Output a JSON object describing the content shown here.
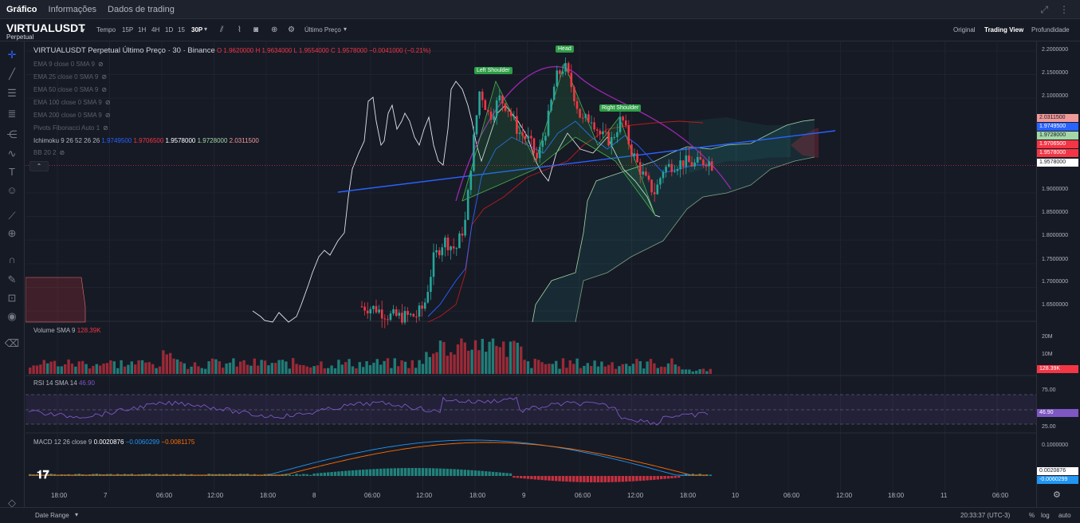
{
  "top_tabs": [
    "Gráfico",
    "Informações",
    "Dados de trading"
  ],
  "symbol": {
    "name": "VIRTUALUSDT",
    "sub": "Perpetual"
  },
  "timeframes": {
    "label": "Tempo",
    "items": [
      "15P",
      "1H",
      "4H",
      "1D",
      "15",
      "30P"
    ],
    "active": "30P"
  },
  "price_type": "Último Preço",
  "views": [
    "Original",
    "Trading View",
    "Profundidade"
  ],
  "legend": {
    "title": "VIRTUALUSDT Perpetual Último Preço · 30 · Binance",
    "o": "O 1.9620000",
    "h": "H 1.9634000",
    "l": "L 1.9554000",
    "c": "C 1.9578000",
    "chg": "−0.0041000 (−0.21%)",
    "indicators": [
      "EMA 9 close 0 SMA 9",
      "EMA 25 close 0 SMA 9",
      "EMA 50 close 0 SMA 9",
      "EMA 100 close 0 SMA 9",
      "EMA 200 close 0 SMA 9",
      "Pivots Fibonacci Auto 1"
    ],
    "ichimoku": {
      "label": "Ichimoku 9 26 52 26 26",
      "v1": "1.9749500",
      "v2": "1.9706500",
      "v3": "1.9578000",
      "v4": "1.9728000",
      "v5": "2.0311500"
    },
    "bb": "BB 20 2"
  },
  "volume": {
    "label": "Volume SMA 9",
    "value": "128.39K"
  },
  "rsi": {
    "label": "RSI 14 SMA 14",
    "value": "46.90"
  },
  "macd": {
    "label": "MACD 12 26 close 9",
    "v1": "0.0020876",
    "v2": "−0.0060299",
    "v3": "−0.0081175"
  },
  "patterns": [
    "Left Shoulder",
    "Head",
    "Right Shoulder"
  ],
  "price_labels": [
    "2.2000000",
    "2.1500000",
    "2.1000000",
    "1.9000000",
    "1.8500000",
    "1.8000000",
    "1.7500000",
    "1.7000000",
    "1.6500000"
  ],
  "price_tags": [
    "2.0311500",
    "1.9749500",
    "1.9728000",
    "1.9706500",
    "1.9578000",
    "1.9578000"
  ],
  "volume_axis": [
    "20M",
    "10M"
  ],
  "volume_tag": "128.39K",
  "rsi_axis": [
    "75.00",
    "25.00"
  ],
  "rsi_tag": "46.90",
  "macd_axis": [
    "0.1000000"
  ],
  "macd_tags": [
    "0.0020876",
    "-0.0060299"
  ],
  "time_labels": [
    "18:00",
    "7",
    "06:00",
    "12:00",
    "18:00",
    "8",
    "06:00",
    "12:00",
    "18:00",
    "9",
    "06:00",
    "12:00",
    "18:00",
    "10",
    "06:00",
    "12:00",
    "18:00",
    "11",
    "06:00"
  ],
  "bottom": {
    "date_range": "Date Range",
    "clock": "20:33:37 (UTC-3)",
    "pct": "%",
    "log": "log",
    "auto": "auto"
  },
  "colors": {
    "up": "#26a69a",
    "down": "#f23645",
    "trend": "#2962ff",
    "head_arc": "#9c27b0",
    "rsi": "#7e57c2"
  },
  "chart_data": {
    "type": "candlestick",
    "title": "VIRTUALUSDT Perpetual Último Preço · 30 · Binance",
    "ylim": [
      1.63,
      2.22
    ],
    "note_levels": {
      "close": 1.9578
    }
  }
}
